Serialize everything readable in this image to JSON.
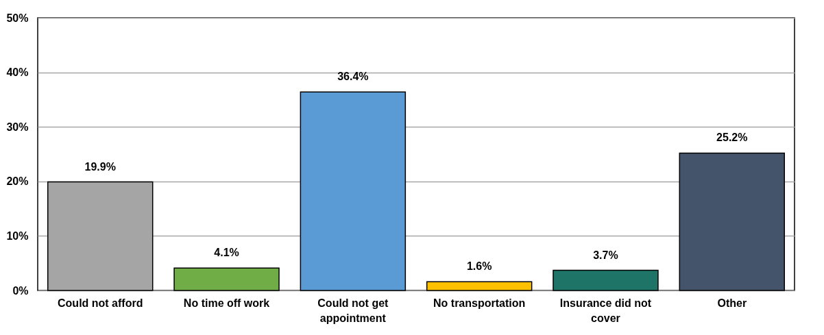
{
  "chart_data": {
    "type": "bar",
    "categories": [
      "Could not afford",
      "No time off work",
      "Could not get appointment",
      "No transportation",
      "Insurance did not cover",
      "Other"
    ],
    "values": [
      19.9,
      4.1,
      36.4,
      1.6,
      3.7,
      25.2
    ],
    "colors": [
      "#a5a5a5",
      "#70ad47",
      "#5b9bd5",
      "#ffc000",
      "#1e7567",
      "#44546a"
    ],
    "value_labels": [
      "19.9%",
      "4.1%",
      "36.4%",
      "1.6%",
      "3.7%",
      "25.2%"
    ],
    "ylim": [
      0,
      50
    ],
    "yticks": [
      {
        "value": 0,
        "label": "0%"
      },
      {
        "value": 10,
        "label": "10%"
      },
      {
        "value": 20,
        "label": "20%"
      },
      {
        "value": 30,
        "label": "30%"
      },
      {
        "value": 40,
        "label": "40%"
      },
      {
        "value": 50,
        "label": "50%"
      }
    ],
    "grid": "y",
    "legend": false
  }
}
